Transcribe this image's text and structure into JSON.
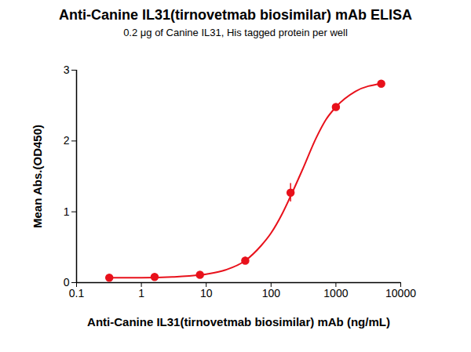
{
  "chart_data": {
    "type": "scatter",
    "title": "Anti-Canine IL31(tirnovetmab biosimilar) mAb ELISA",
    "subtitle": "0.2 μg of Canine IL31, His tagged protein per well",
    "x_label": "Anti-Canine IL31(tirnovetmab biosimilar) mAb (ng/mL)",
    "y_label": "Mean Abs.(OD450)",
    "log": "x",
    "grid": false,
    "xlim": [
      0.1,
      10000
    ],
    "xticks": [
      0.1,
      1,
      10,
      100,
      1000,
      10000
    ],
    "ylim": [
      0,
      3
    ],
    "yticks": [
      0,
      1,
      2,
      3
    ],
    "series": [
      {
        "type": "scatter",
        "color": "#e8111b",
        "marker": "circle",
        "x": [
          0.32,
          1.6,
          8,
          40,
          200,
          1000,
          5000
        ],
        "values": [
          0.07,
          0.08,
          0.11,
          0.31,
          1.27,
          2.48,
          2.81
        ],
        "error": [
          0.01,
          0.01,
          0.01,
          0.05,
          0.13,
          0.01,
          0.01
        ]
      },
      {
        "type": "line",
        "color": "#e8111b",
        "line_style": "solid",
        "x": [
          0.32,
          1,
          3,
          10,
          20,
          40,
          70,
          100,
          150,
          200,
          300,
          500,
          700,
          1000,
          2000,
          5000
        ],
        "values": [
          0.07,
          0.07,
          0.08,
          0.12,
          0.18,
          0.31,
          0.52,
          0.7,
          0.98,
          1.22,
          1.58,
          2.05,
          2.3,
          2.48,
          2.7,
          2.81
        ]
      }
    ]
  }
}
